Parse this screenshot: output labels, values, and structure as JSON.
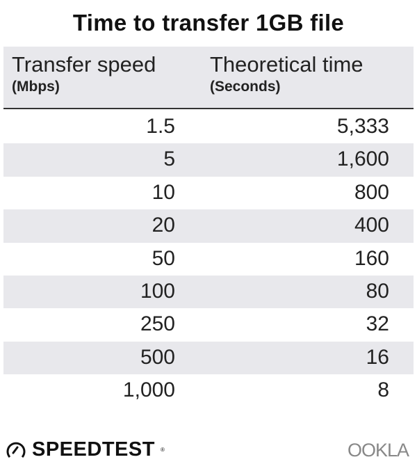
{
  "chart_data": {
    "type": "table",
    "title": "Time to transfer 1GB file",
    "columns": [
      {
        "label": "Transfer speed",
        "unit": "(Mbps)"
      },
      {
        "label": "Theoretical time",
        "unit": "(Seconds)"
      }
    ],
    "rows": [
      [
        "1.5",
        "5,333"
      ],
      [
        "5",
        "1,600"
      ],
      [
        "10",
        "800"
      ],
      [
        "20",
        "400"
      ],
      [
        "50",
        "160"
      ],
      [
        "100",
        "80"
      ],
      [
        "250",
        "32"
      ],
      [
        "500",
        "16"
      ],
      [
        "1,000",
        "8"
      ]
    ],
    "colors": {
      "stripe": "#e8e8ec",
      "header_bg": "#e8e8ec",
      "text": "#222222"
    }
  },
  "footer": {
    "brand_left": "SPEEDTEST",
    "brand_right": "OOKLA",
    "brand_left_icon": "speedometer-icon"
  }
}
